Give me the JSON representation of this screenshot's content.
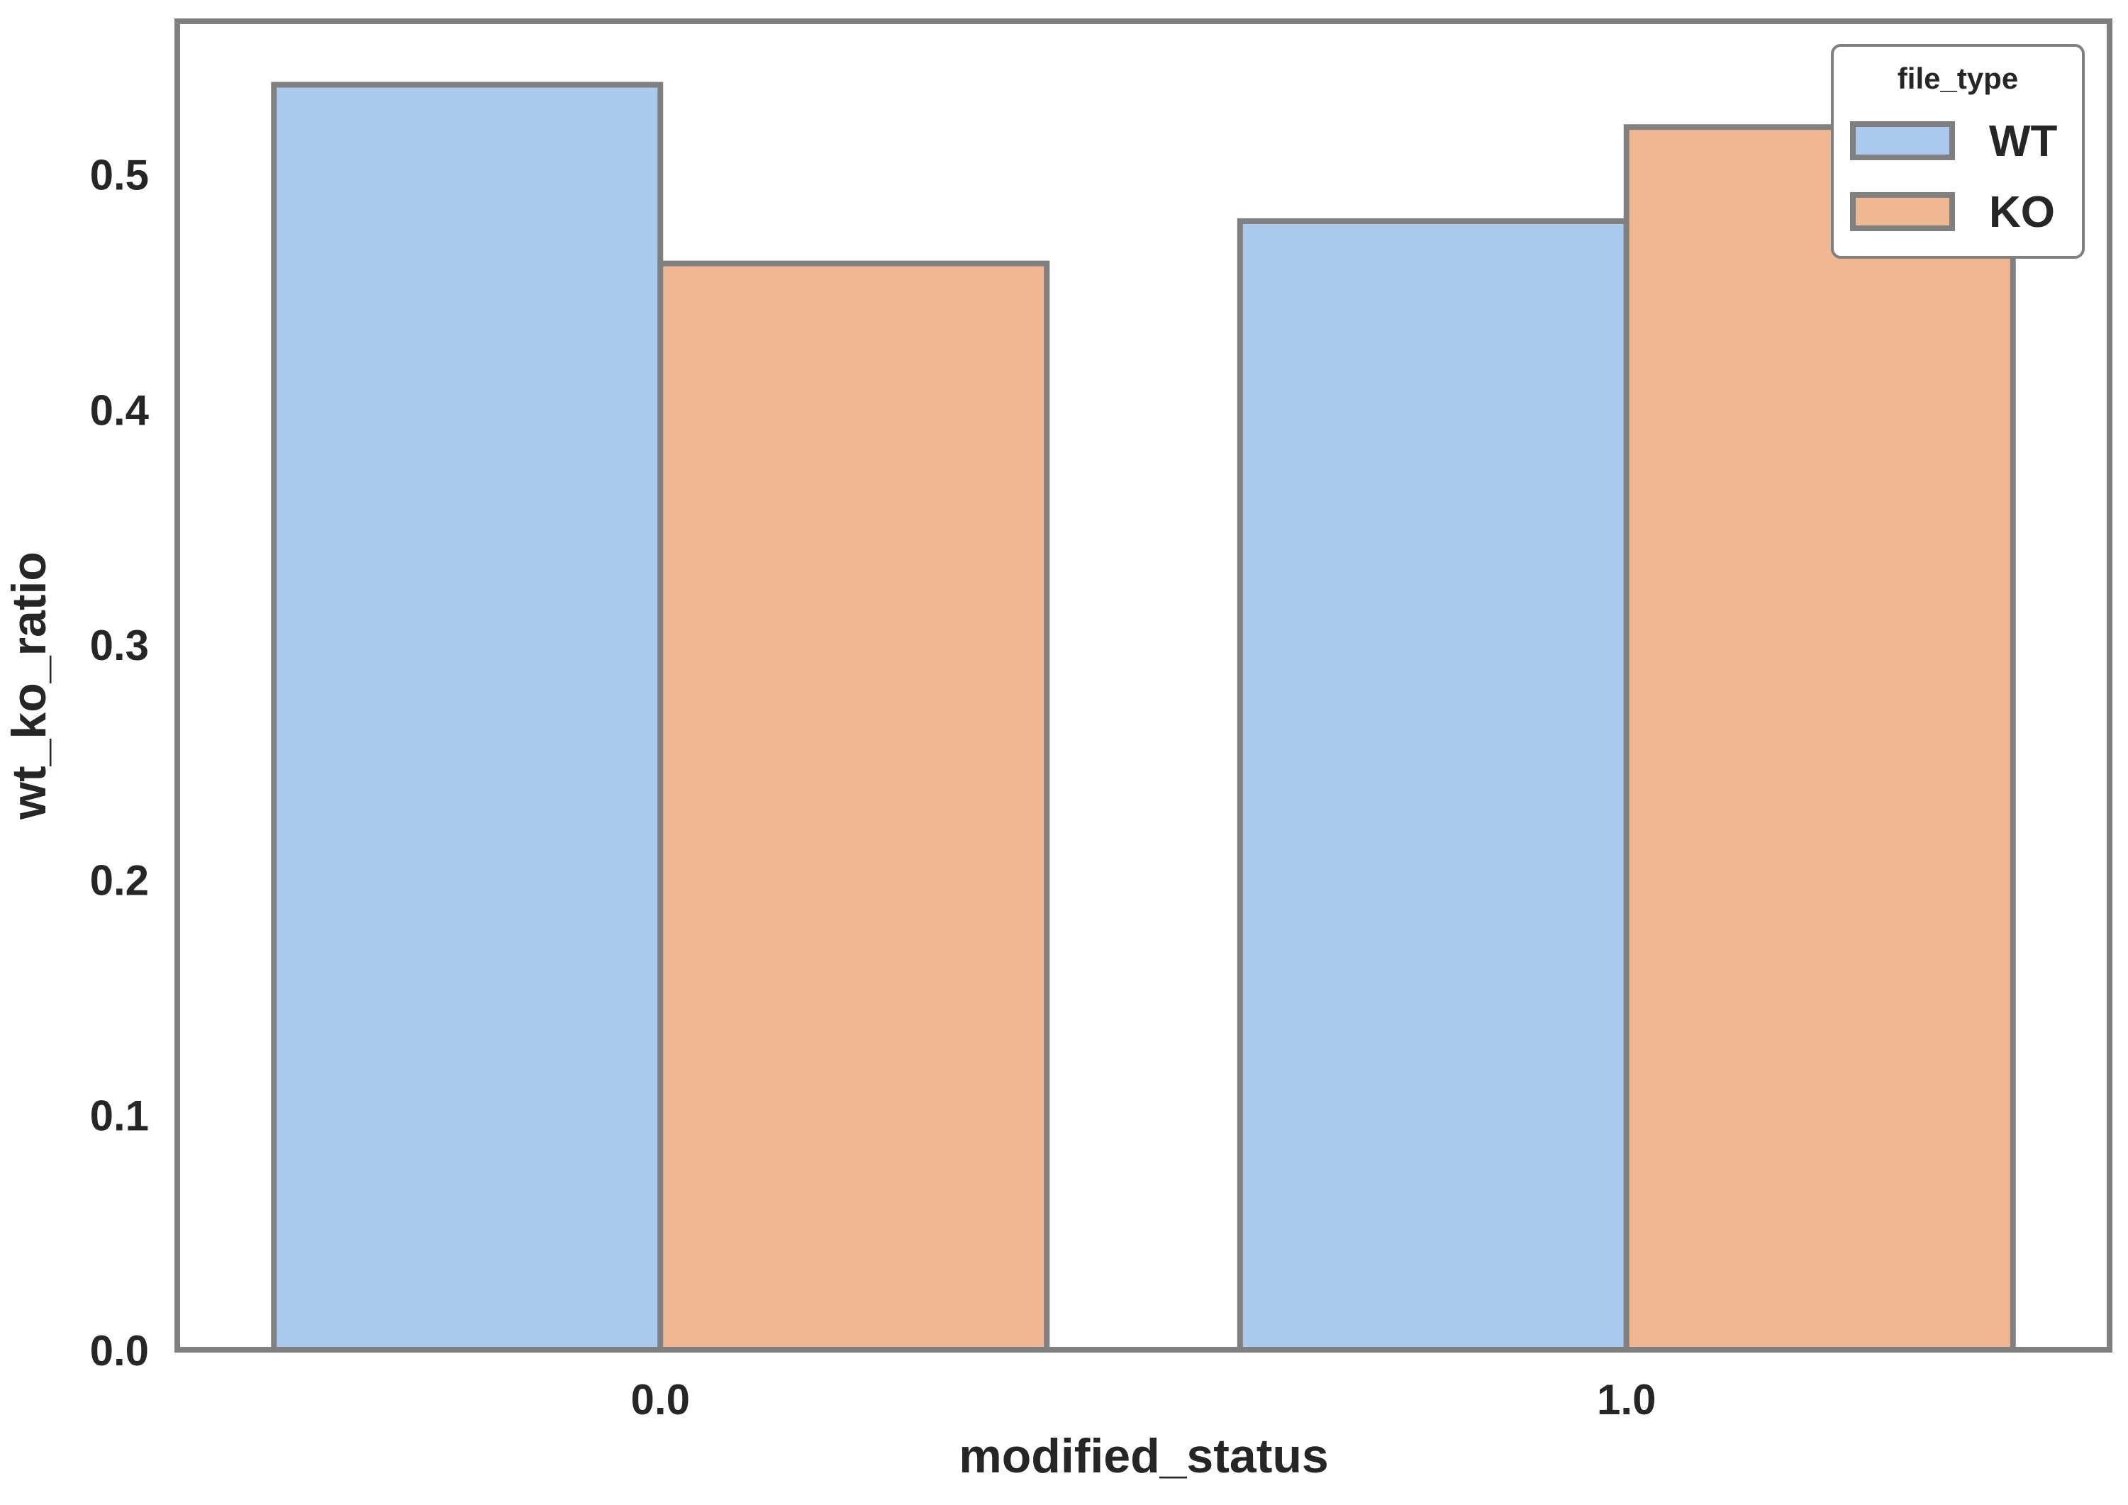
{
  "chart_data": {
    "type": "bar",
    "xlabel": "modified_status",
    "ylabel": "wt_ko_ratio",
    "categories": [
      "0.0",
      "1.0"
    ],
    "series": [
      {
        "name": "WT",
        "values": [
          0.538,
          0.48
        ],
        "color": "#abc9ec"
      },
      {
        "name": "KO",
        "values": [
          0.462,
          0.52
        ],
        "color": "#f0b793"
      }
    ],
    "ylim": [
      0,
      0.565
    ],
    "yticks": [
      0.0,
      0.1,
      0.2,
      0.3,
      0.4,
      0.5
    ],
    "ytick_labels": [
      "0.0",
      "0.1",
      "0.2",
      "0.3",
      "0.4",
      "0.5"
    ],
    "legend": {
      "title": "file_type",
      "placement": "top-right"
    },
    "grid": false,
    "edge_color": "#808080"
  }
}
